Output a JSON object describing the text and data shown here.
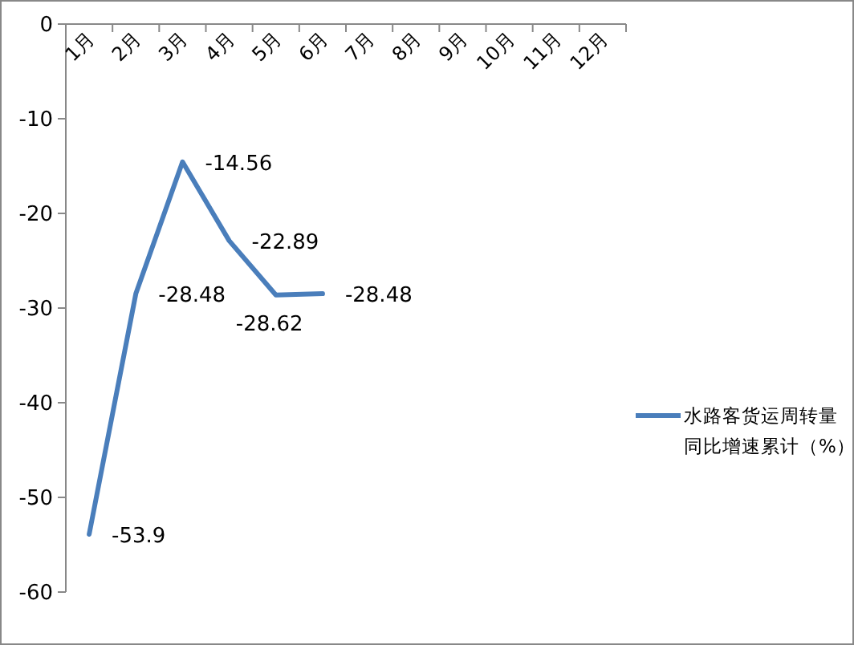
{
  "chart_data": {
    "type": "line",
    "categories": [
      "1月",
      "2月",
      "3月",
      "4月",
      "5月",
      "6月",
      "7月",
      "8月",
      "9月",
      "10月",
      "11月",
      "12月"
    ],
    "series": [
      {
        "name": "水路客货运周转量同比增速累计（%）",
        "color": "#4a7ebb",
        "values": [
          -53.9,
          -28.48,
          -14.56,
          -22.89,
          -28.62,
          -28.48,
          null,
          null,
          null,
          null,
          null,
          null
        ]
      }
    ],
    "ylim": [
      -60,
      0
    ],
    "yticks": [
      0,
      -10,
      -20,
      -30,
      -40,
      -50,
      -60
    ],
    "data_labels": true,
    "legend": "right",
    "grid": false,
    "marker": "none",
    "line_style": "solid"
  }
}
